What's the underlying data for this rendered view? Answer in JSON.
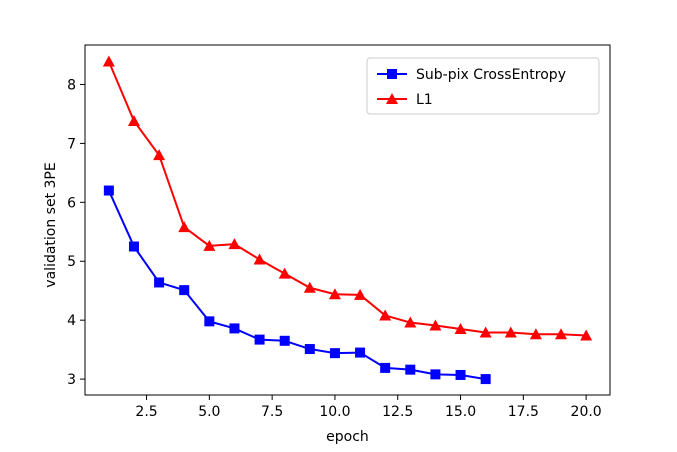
{
  "chart_data": {
    "type": "line",
    "xlabel": "epoch",
    "ylabel": "validation set 3PE",
    "xlim": [
      0.05,
      20.95
    ],
    "ylim": [
      2.73,
      8.67
    ],
    "xticks": [
      2.5,
      5.0,
      7.5,
      10.0,
      12.5,
      15.0,
      17.5,
      20.0
    ],
    "xtick_labels": [
      "2.5",
      "5.0",
      "7.5",
      "10.0",
      "12.5",
      "15.0",
      "17.5",
      "20.0"
    ],
    "yticks": [
      3,
      4,
      5,
      6,
      7,
      8
    ],
    "ytick_labels": [
      "3",
      "4",
      "5",
      "6",
      "7",
      "8"
    ],
    "grid": false,
    "legend_position": "top-right",
    "series": [
      {
        "name": "Sub-pix CrossEntropy",
        "color": "#0000ff",
        "marker": "square",
        "x": [
          1,
          2,
          3,
          4,
          5,
          6,
          7,
          8,
          9,
          10,
          11,
          12,
          13,
          14,
          15,
          16
        ],
        "y": [
          6.2,
          5.25,
          4.64,
          4.51,
          3.98,
          3.86,
          3.67,
          3.65,
          3.51,
          3.44,
          3.45,
          3.19,
          3.16,
          3.08,
          3.07,
          3.0
        ]
      },
      {
        "name": "L1",
        "color": "#ff0000",
        "marker": "triangle",
        "x": [
          1,
          2,
          3,
          4,
          5,
          6,
          7,
          8,
          9,
          10,
          11,
          12,
          13,
          14,
          15,
          16,
          17,
          18,
          19,
          20
        ],
        "y": [
          8.39,
          7.38,
          6.8,
          5.58,
          5.26,
          5.29,
          5.03,
          4.79,
          4.55,
          4.44,
          4.43,
          4.08,
          3.96,
          3.91,
          3.85,
          3.79,
          3.79,
          3.76,
          3.76,
          3.74
        ]
      }
    ]
  }
}
